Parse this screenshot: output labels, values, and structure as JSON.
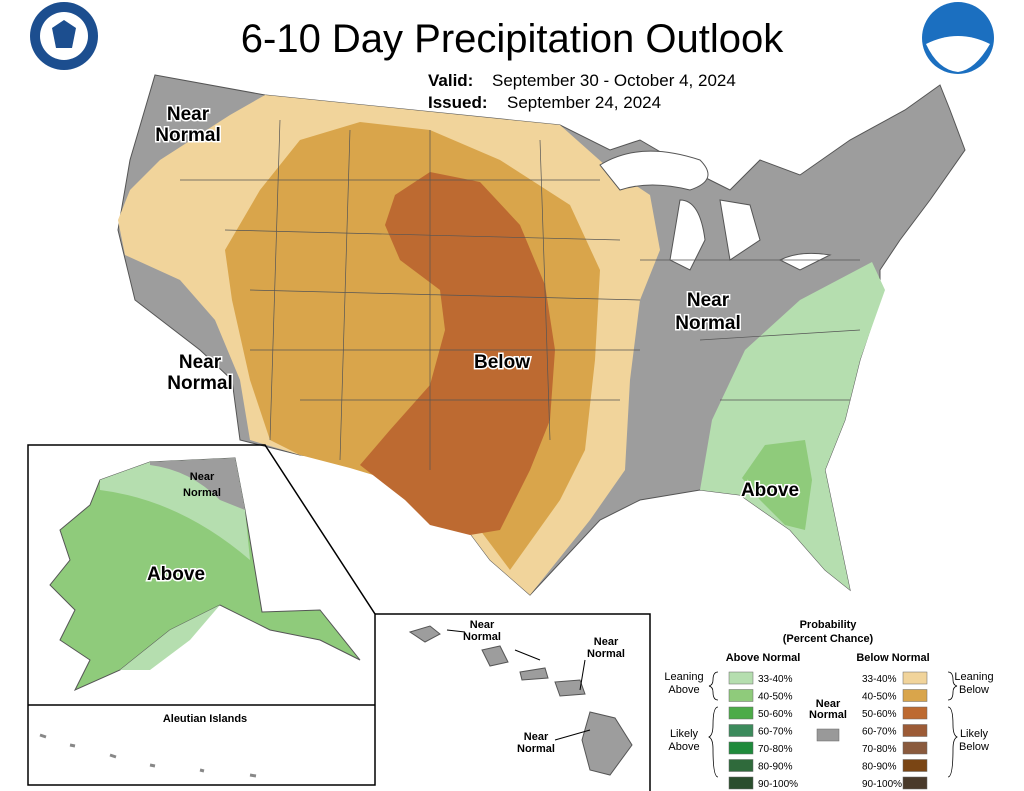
{
  "header": {
    "title": "6-10 Day Precipitation Outlook",
    "valid_label": "Valid:",
    "valid": "September 30 - October 4, 2024",
    "issued_label": "Issued:",
    "issued": "September 24, 2024"
  },
  "map_labels": [
    [
      "Near",
      "Normal"
    ],
    [
      "Near",
      "Normal"
    ],
    [
      "Below"
    ],
    [
      "Near",
      "Normal"
    ],
    [
      "Above"
    ]
  ],
  "alaska": {
    "labels": [
      [
        "Near",
        "Normal"
      ],
      [
        "Above"
      ]
    ],
    "aleutian": "Aleutian Islands"
  },
  "hawaii": {
    "labels": [
      [
        "Near",
        "Normal"
      ],
      [
        "Near",
        "Normal"
      ],
      [
        "Near",
        "Normal"
      ]
    ]
  },
  "legend": {
    "title": [
      "Probability",
      "(Percent Chance)"
    ],
    "above_header": "Above Normal",
    "below_header": "Below Normal",
    "near": [
      "Near",
      "Normal"
    ],
    "near_color": "#999999",
    "above_groups": [
      [
        "Leaning",
        "Above"
      ],
      [
        "Likely",
        "Above"
      ]
    ],
    "below_groups": [
      [
        "Leaning",
        "Below"
      ],
      [
        "Likely",
        "Below"
      ]
    ],
    "above": [
      {
        "range": "33-40%",
        "color": "#b5deaf"
      },
      {
        "range": "40-50%",
        "color": "#8fcb7b"
      },
      {
        "range": "50-60%",
        "color": "#4cab48"
      },
      {
        "range": "60-70%",
        "color": "#3c8b5c"
      },
      {
        "range": "70-80%",
        "color": "#1f8a3b"
      },
      {
        "range": "80-90%",
        "color": "#2f6a3b"
      },
      {
        "range": "90-100%",
        "color": "#2a4e2d"
      }
    ],
    "below": [
      {
        "range": "33-40%",
        "color": "#f1d49b"
      },
      {
        "range": "40-50%",
        "color": "#d9a54b"
      },
      {
        "range": "50-60%",
        "color": "#bd6a31"
      },
      {
        "range": "60-70%",
        "color": "#9c5b36"
      },
      {
        "range": "70-80%",
        "color": "#8a5a3d"
      },
      {
        "range": "80-90%",
        "color": "#7a4514"
      },
      {
        "range": "90-100%",
        "color": "#4a3a2b"
      }
    ]
  }
}
